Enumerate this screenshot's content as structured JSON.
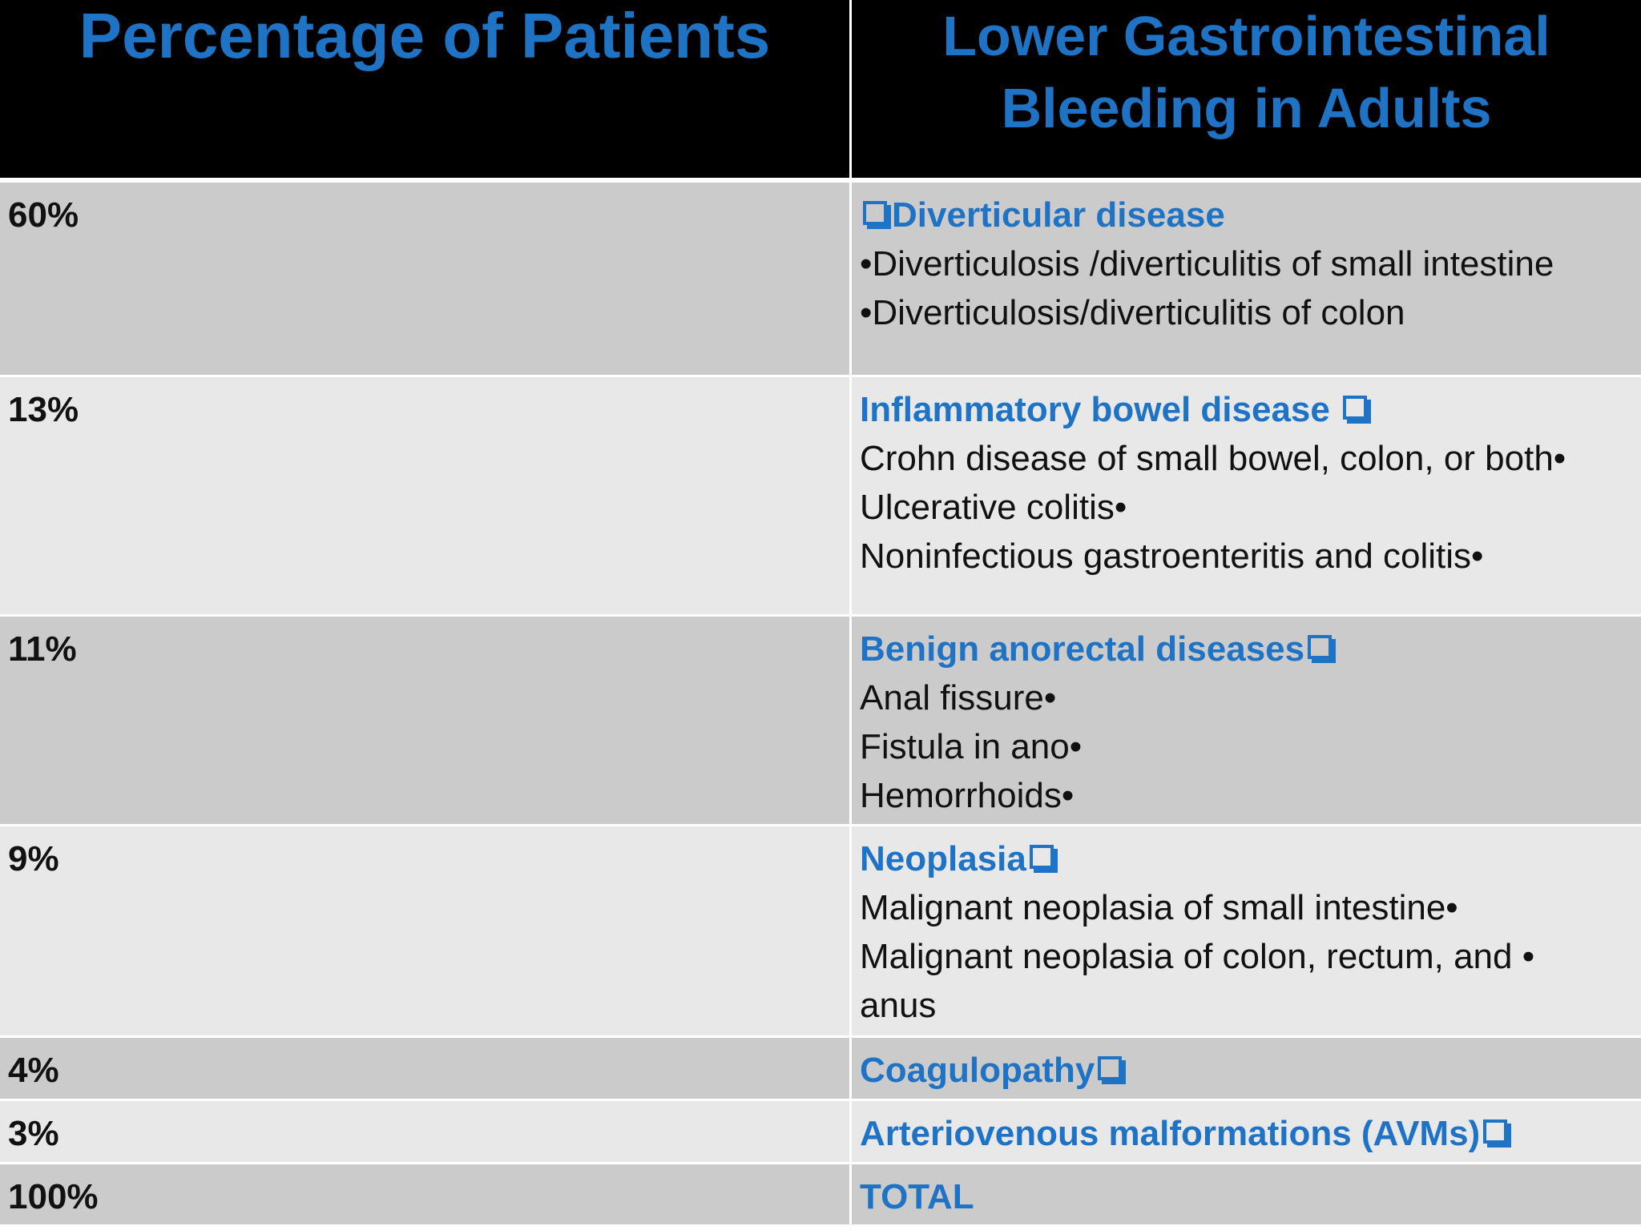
{
  "header": {
    "left": "Percentage of Patients",
    "right_line1": "Lower Gastrointestinal",
    "right_line2": "Bleeding in Adults"
  },
  "rows": [
    {
      "percent": "60%",
      "category": "Diverticular disease",
      "items": [
        "•Diverticulosis /diverticulitis of small intestine",
        "•Diverticulosis/diverticulitis of colon"
      ]
    },
    {
      "percent": "13%",
      "category": "Inflammatory bowel disease ",
      "items": [
        "Crohn disease of small bowel, colon, or both•",
        "Ulcerative colitis•",
        "Noninfectious gastroenteritis and colitis•"
      ]
    },
    {
      "percent": "11%",
      "category": "Benign anorectal diseases",
      "items": [
        "Anal fissure•",
        "Fistula in ano•",
        "Hemorrhoids•"
      ]
    },
    {
      "percent": "9%",
      "category": "Neoplasia",
      "items": [
        "Malignant neoplasia of small intestine•",
        "Malignant neoplasia of colon, rectum, and •",
        "anus"
      ]
    },
    {
      "percent": "4%",
      "category": "Coagulopathy",
      "items": []
    },
    {
      "percent": "3%",
      "category": "Arteriovenous malformations (AVMs)",
      "items": []
    },
    {
      "percent": "100%",
      "category": "TOTAL",
      "items": []
    }
  ],
  "colors": {
    "header_bg": "#000000",
    "accent_blue": "#1f73c4",
    "row_dark": "#cbcbcc",
    "row_light": "#e8e8e9"
  },
  "icons": {
    "bullet_box": "checkbox-outline-icon"
  }
}
